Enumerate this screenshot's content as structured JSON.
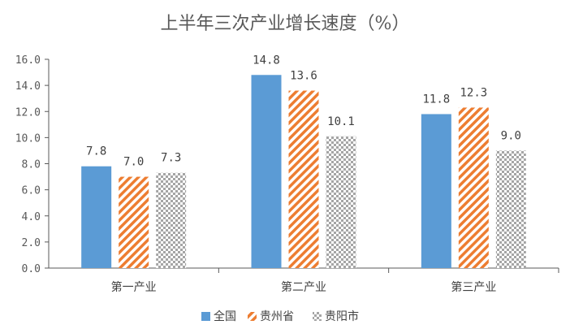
{
  "chart_data": {
    "type": "bar",
    "title": "上半年三次产业增长速度（%）",
    "categories": [
      "第一产业",
      "第二产业",
      "第三产业"
    ],
    "series": [
      {
        "name": "全国",
        "values": [
          7.8,
          14.8,
          11.8
        ],
        "color": "#5b9bd5",
        "pattern": "solid"
      },
      {
        "name": "贵州省",
        "values": [
          7.0,
          13.6,
          12.3
        ],
        "color": "#ed7d31",
        "pattern": "diagonal-stripes"
      },
      {
        "name": "贵阳市",
        "values": [
          7.3,
          10.1,
          9.0
        ],
        "color": "#a5a5a5",
        "pattern": "checker-dots"
      }
    ],
    "data_labels": [
      [
        "7.8",
        "14.8",
        "11.8"
      ],
      [
        "7.0",
        "13.6",
        "12.3"
      ],
      [
        "7.3",
        "10.1",
        "9.0"
      ]
    ],
    "ylim": [
      0,
      16
    ],
    "yticks": [
      "0.0",
      "2.0",
      "4.0",
      "6.0",
      "8.0",
      "10.0",
      "12.0",
      "14.0",
      "16.0"
    ],
    "grid": false,
    "legend_position": "bottom"
  }
}
